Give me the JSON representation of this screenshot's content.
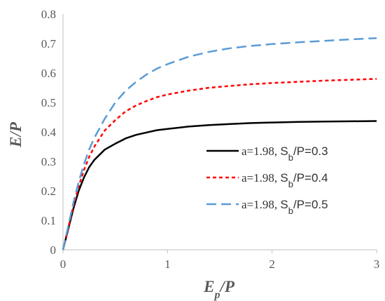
{
  "chart_data": {
    "type": "line",
    "title": "",
    "xlabel": "E",
    "xlabel_sub": "p",
    "xlabel_suffix": "/P",
    "ylabel": "E/P",
    "xlim": [
      0,
      3
    ],
    "ylim": [
      0,
      0.8
    ],
    "x_ticks": [
      "0",
      "1",
      "2",
      "3"
    ],
    "y_ticks": [
      "0",
      "0.1",
      "0.2",
      "0.3",
      "0.4",
      "0.5",
      "0.6",
      "0.7",
      "0.8"
    ],
    "grid": false,
    "legend_position": "center-right",
    "series": [
      {
        "name": "a=1.98, Sb/P=0.3",
        "legend_prefix": "a=1.98, ",
        "legend_symbol": "S",
        "legend_sub": "b",
        "legend_suffix": "/P=0.3",
        "color": "#000000",
        "dash": "solid",
        "x": [
          0,
          0.05,
          0.1,
          0.15,
          0.2,
          0.25,
          0.3,
          0.4,
          0.5,
          0.6,
          0.7,
          0.8,
          0.9,
          1.0,
          1.2,
          1.4,
          1.6,
          1.8,
          2.0,
          2.25,
          2.5,
          2.75,
          3.0
        ],
        "y": [
          0,
          0.07,
          0.14,
          0.2,
          0.245,
          0.28,
          0.305,
          0.34,
          0.36,
          0.378,
          0.39,
          0.398,
          0.406,
          0.41,
          0.418,
          0.423,
          0.427,
          0.43,
          0.432,
          0.434,
          0.435,
          0.436,
          0.437
        ]
      },
      {
        "name": "a=1.98, Sb/P=0.4",
        "legend_prefix": "a=1.98, ",
        "legend_symbol": "S",
        "legend_sub": "b",
        "legend_suffix": "/P=0.4",
        "color": "#ff0000",
        "dash": "dotted",
        "x": [
          0,
          0.05,
          0.1,
          0.15,
          0.2,
          0.25,
          0.3,
          0.4,
          0.5,
          0.6,
          0.7,
          0.8,
          0.9,
          1.0,
          1.2,
          1.4,
          1.6,
          1.8,
          2.0,
          2.25,
          2.5,
          2.75,
          3.0
        ],
        "y": [
          0,
          0.075,
          0.15,
          0.215,
          0.27,
          0.315,
          0.35,
          0.405,
          0.44,
          0.47,
          0.49,
          0.505,
          0.518,
          0.527,
          0.54,
          0.55,
          0.556,
          0.562,
          0.566,
          0.57,
          0.574,
          0.577,
          0.58
        ]
      },
      {
        "name": "a=1.98, Sb/P=0.5",
        "legend_prefix": "a=1.98, ",
        "legend_symbol": "S",
        "legend_sub": "b",
        "legend_suffix": "/P=0.5",
        "color": "#5b9bd5",
        "dash": "dashed",
        "x": [
          0,
          0.05,
          0.1,
          0.15,
          0.2,
          0.25,
          0.3,
          0.4,
          0.5,
          0.6,
          0.7,
          0.8,
          0.9,
          1.0,
          1.2,
          1.4,
          1.6,
          1.8,
          2.0,
          2.25,
          2.5,
          2.75,
          3.0
        ],
        "y": [
          0,
          0.08,
          0.16,
          0.23,
          0.29,
          0.34,
          0.38,
          0.445,
          0.5,
          0.54,
          0.57,
          0.595,
          0.615,
          0.63,
          0.655,
          0.672,
          0.684,
          0.692,
          0.698,
          0.704,
          0.709,
          0.714,
          0.718
        ]
      }
    ]
  }
}
